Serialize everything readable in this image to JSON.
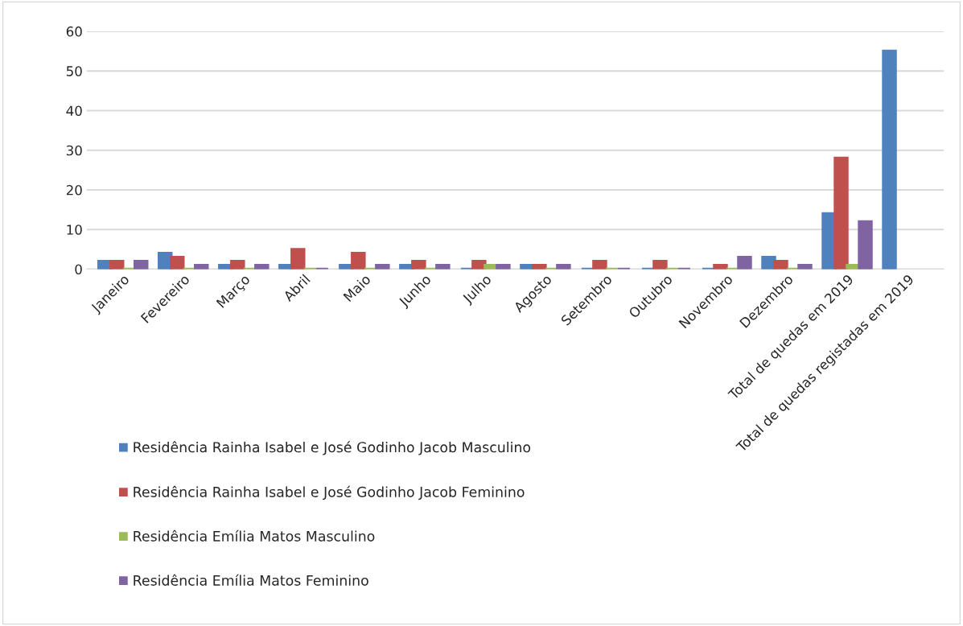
{
  "chart_data": {
    "type": "bar",
    "categories": [
      "Janeiro",
      "Fevereiro",
      "Março",
      "Abril",
      "Maio",
      "Junho",
      "Julho",
      "Agosto",
      "Setembro",
      "Outubro",
      "Novembro",
      "Dezembro",
      "Total de quedas em 2019",
      "Total de quedas registadas em 2019"
    ],
    "series": [
      {
        "name": "Residência Rainha Isabel e José Godinho Jacob Masculino",
        "color": "#4f81bd",
        "values": [
          2,
          4,
          1,
          1,
          1,
          1,
          0,
          1,
          0,
          0,
          0,
          3,
          14,
          55
        ]
      },
      {
        "name": "Residência Rainha Isabel e José Godinho Jacob Feminino",
        "color": "#c0504d",
        "values": [
          2,
          3,
          2,
          5,
          4,
          2,
          2,
          1,
          2,
          2,
          1,
          2,
          28,
          null
        ]
      },
      {
        "name": "Residência Emília Matos Masculino",
        "color": "#9bbb59",
        "values": [
          0,
          0,
          0,
          0,
          0,
          0,
          1,
          0,
          0,
          0,
          0,
          0,
          1,
          null
        ]
      },
      {
        "name": "Residência Emília Matos Feminino",
        "color": "#8064a2",
        "values": [
          2,
          1,
          1,
          0,
          1,
          1,
          1,
          1,
          0,
          0,
          3,
          1,
          12,
          null
        ]
      }
    ],
    "ylim": [
      0,
      60
    ],
    "yticks": [
      0,
      10,
      20,
      30,
      40,
      50,
      60
    ],
    "grid": "y",
    "legend": "bottom left"
  }
}
